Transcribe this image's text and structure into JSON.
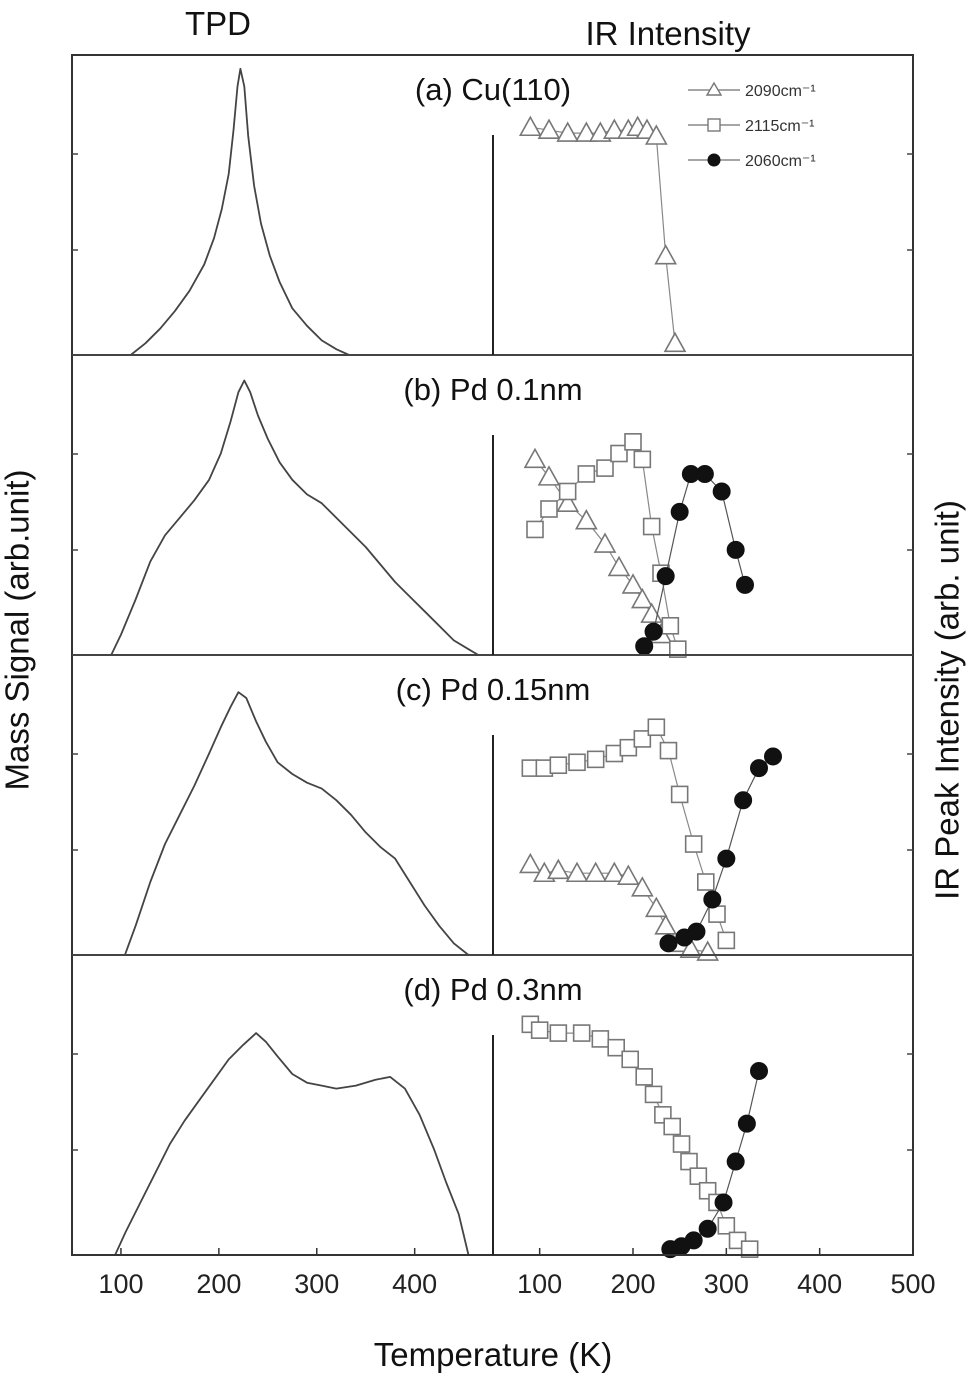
{
  "chart_data": {
    "type": "line",
    "left_header": "TPD",
    "right_header": "IR Intensity",
    "ylabel_left": "Mass Signal (arb.unit)",
    "ylabel_right": "IR Peak Intensity (arb. unit)",
    "xlabel": "Temperature (K)",
    "tpd_xticks": [
      100,
      200,
      300,
      400
    ],
    "ir_xticks": [
      100,
      200,
      300,
      400,
      500
    ],
    "tpd_xlim": [
      50,
      480
    ],
    "ir_xlim": [
      50,
      500
    ],
    "legend": {
      "placement": "top-right of panel (a)",
      "entries": [
        {
          "key": "s2090",
          "label": "2090cm⁻¹",
          "marker": "triangle-open"
        },
        {
          "key": "s2115",
          "label": "2115cm⁻¹",
          "marker": "square-open"
        },
        {
          "key": "s2060",
          "label": "2060cm⁻¹",
          "marker": "circle-filled"
        }
      ]
    },
    "panels": [
      {
        "title": "(a) Cu(110)",
        "tpd": [
          [
            110,
            0.0
          ],
          [
            125,
            0.04
          ],
          [
            140,
            0.09
          ],
          [
            155,
            0.15
          ],
          [
            170,
            0.22
          ],
          [
            185,
            0.31
          ],
          [
            195,
            0.4
          ],
          [
            203,
            0.5
          ],
          [
            210,
            0.62
          ],
          [
            215,
            0.77
          ],
          [
            219,
            0.92
          ],
          [
            222,
            0.98
          ],
          [
            226,
            0.92
          ],
          [
            230,
            0.75
          ],
          [
            236,
            0.58
          ],
          [
            243,
            0.45
          ],
          [
            252,
            0.34
          ],
          [
            262,
            0.25
          ],
          [
            275,
            0.16
          ],
          [
            290,
            0.1
          ],
          [
            305,
            0.05
          ],
          [
            320,
            0.02
          ],
          [
            333,
            0.0
          ]
        ],
        "ir": {
          "s2090": [
            [
              90,
              0.78
            ],
            [
              110,
              0.77
            ],
            [
              130,
              0.76
            ],
            [
              150,
              0.76
            ],
            [
              165,
              0.76
            ],
            [
              180,
              0.77
            ],
            [
              195,
              0.77
            ],
            [
              205,
              0.78
            ],
            [
              215,
              0.77
            ],
            [
              225,
              0.75
            ],
            [
              235,
              0.34
            ],
            [
              245,
              0.04
            ]
          ]
        }
      },
      {
        "title": "(b) Pd 0.1nm",
        "tpd": [
          [
            90,
            0.0
          ],
          [
            100,
            0.07
          ],
          [
            115,
            0.19
          ],
          [
            130,
            0.32
          ],
          [
            145,
            0.41
          ],
          [
            160,
            0.47
          ],
          [
            175,
            0.53
          ],
          [
            190,
            0.6
          ],
          [
            202,
            0.69
          ],
          [
            212,
            0.8
          ],
          [
            220,
            0.9
          ],
          [
            226,
            0.94
          ],
          [
            232,
            0.9
          ],
          [
            240,
            0.82
          ],
          [
            250,
            0.74
          ],
          [
            262,
            0.66
          ],
          [
            275,
            0.6
          ],
          [
            290,
            0.55
          ],
          [
            305,
            0.52
          ],
          [
            320,
            0.47
          ],
          [
            335,
            0.42
          ],
          [
            350,
            0.37
          ],
          [
            365,
            0.31
          ],
          [
            380,
            0.25
          ],
          [
            395,
            0.2
          ],
          [
            410,
            0.15
          ],
          [
            425,
            0.1
          ],
          [
            440,
            0.05
          ],
          [
            455,
            0.02
          ],
          [
            465,
            0.0
          ]
        ],
        "ir": {
          "s2090": [
            [
              95,
              0.67
            ],
            [
              110,
              0.61
            ],
            [
              130,
              0.52
            ],
            [
              150,
              0.46
            ],
            [
              170,
              0.38
            ],
            [
              185,
              0.3
            ],
            [
              200,
              0.24
            ],
            [
              210,
              0.19
            ],
            [
              220,
              0.14
            ],
            [
              230,
              0.07
            ]
          ],
          "s2115": [
            [
              95,
              0.43
            ],
            [
              110,
              0.5
            ],
            [
              130,
              0.56
            ],
            [
              150,
              0.62
            ],
            [
              170,
              0.64
            ],
            [
              185,
              0.69
            ],
            [
              200,
              0.73
            ],
            [
              210,
              0.67
            ],
            [
              220,
              0.44
            ],
            [
              230,
              0.28
            ],
            [
              240,
              0.1
            ],
            [
              248,
              0.02
            ]
          ],
          "s2060": [
            [
              212,
              0.03
            ],
            [
              222,
              0.08
            ],
            [
              235,
              0.27
            ],
            [
              250,
              0.49
            ],
            [
              262,
              0.62
            ],
            [
              277,
              0.62
            ],
            [
              295,
              0.56
            ],
            [
              310,
              0.36
            ],
            [
              320,
              0.24
            ]
          ]
        }
      },
      {
        "title": "(c) Pd 0.15nm",
        "tpd": [
          [
            104,
            0.0
          ],
          [
            115,
            0.1
          ],
          [
            130,
            0.25
          ],
          [
            145,
            0.38
          ],
          [
            160,
            0.48
          ],
          [
            175,
            0.58
          ],
          [
            190,
            0.69
          ],
          [
            202,
            0.78
          ],
          [
            212,
            0.85
          ],
          [
            220,
            0.9
          ],
          [
            228,
            0.88
          ],
          [
            238,
            0.8
          ],
          [
            248,
            0.73
          ],
          [
            260,
            0.66
          ],
          [
            275,
            0.62
          ],
          [
            290,
            0.59
          ],
          [
            305,
            0.57
          ],
          [
            320,
            0.53
          ],
          [
            335,
            0.48
          ],
          [
            350,
            0.42
          ],
          [
            365,
            0.37
          ],
          [
            380,
            0.33
          ],
          [
            395,
            0.25
          ],
          [
            410,
            0.17
          ],
          [
            425,
            0.1
          ],
          [
            440,
            0.04
          ],
          [
            455,
            0.0
          ]
        ],
        "ir": {
          "s2090": [
            [
              90,
              0.31
            ],
            [
              105,
              0.28
            ],
            [
              120,
              0.29
            ],
            [
              140,
              0.28
            ],
            [
              160,
              0.28
            ],
            [
              180,
              0.28
            ],
            [
              195,
              0.27
            ],
            [
              210,
              0.23
            ],
            [
              225,
              0.16
            ],
            [
              235,
              0.1
            ],
            [
              250,
              0.04
            ],
            [
              262,
              0.02
            ],
            [
              280,
              0.01
            ]
          ],
          "s2115": [
            [
              90,
              0.64
            ],
            [
              105,
              0.64
            ],
            [
              120,
              0.65
            ],
            [
              140,
              0.66
            ],
            [
              160,
              0.67
            ],
            [
              180,
              0.69
            ],
            [
              195,
              0.71
            ],
            [
              210,
              0.74
            ],
            [
              225,
              0.78
            ],
            [
              238,
              0.7
            ],
            [
              250,
              0.55
            ],
            [
              265,
              0.38
            ],
            [
              278,
              0.25
            ],
            [
              290,
              0.14
            ],
            [
              300,
              0.05
            ]
          ],
          "s2060": [
            [
              238,
              0.04
            ],
            [
              255,
              0.06
            ],
            [
              268,
              0.08
            ],
            [
              285,
              0.19
            ],
            [
              300,
              0.33
            ],
            [
              318,
              0.53
            ],
            [
              335,
              0.64
            ],
            [
              350,
              0.68
            ]
          ]
        }
      },
      {
        "title": "(d) Pd 0.3nm",
        "tpd": [
          [
            94,
            0.0
          ],
          [
            105,
            0.08
          ],
          [
            120,
            0.18
          ],
          [
            135,
            0.28
          ],
          [
            150,
            0.38
          ],
          [
            165,
            0.46
          ],
          [
            180,
            0.53
          ],
          [
            195,
            0.6
          ],
          [
            210,
            0.67
          ],
          [
            225,
            0.72
          ],
          [
            238,
            0.76
          ],
          [
            248,
            0.73
          ],
          [
            260,
            0.68
          ],
          [
            275,
            0.62
          ],
          [
            290,
            0.59
          ],
          [
            305,
            0.58
          ],
          [
            320,
            0.57
          ],
          [
            340,
            0.58
          ],
          [
            360,
            0.6
          ],
          [
            375,
            0.61
          ],
          [
            390,
            0.57
          ],
          [
            405,
            0.48
          ],
          [
            420,
            0.36
          ],
          [
            432,
            0.25
          ],
          [
            445,
            0.14
          ],
          [
            455,
            0.0
          ]
        ],
        "ir": {
          "s2115": [
            [
              90,
              0.79
            ],
            [
              100,
              0.77
            ],
            [
              120,
              0.76
            ],
            [
              145,
              0.76
            ],
            [
              165,
              0.74
            ],
            [
              182,
              0.71
            ],
            [
              197,
              0.67
            ],
            [
              212,
              0.61
            ],
            [
              222,
              0.55
            ],
            [
              232,
              0.48
            ],
            [
              242,
              0.44
            ],
            [
              252,
              0.38
            ],
            [
              260,
              0.32
            ],
            [
              270,
              0.27
            ],
            [
              280,
              0.22
            ],
            [
              290,
              0.18
            ],
            [
              300,
              0.1
            ],
            [
              312,
              0.05
            ],
            [
              325,
              0.02
            ]
          ],
          "s2060": [
            [
              240,
              0.02
            ],
            [
              252,
              0.03
            ],
            [
              265,
              0.05
            ],
            [
              280,
              0.09
            ],
            [
              297,
              0.18
            ],
            [
              310,
              0.32
            ],
            [
              322,
              0.45
            ],
            [
              335,
              0.63
            ]
          ]
        }
      }
    ]
  }
}
